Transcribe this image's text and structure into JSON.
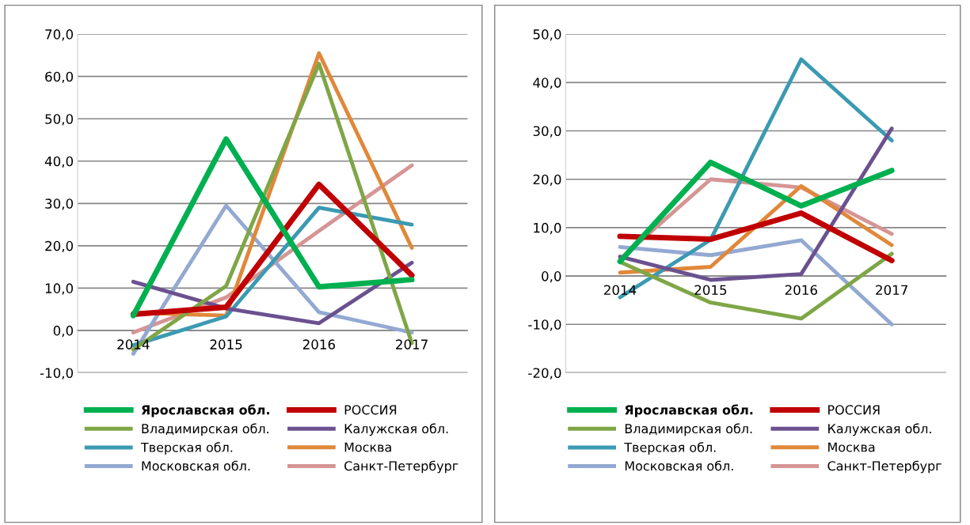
{
  "chart_data": [
    {
      "type": "line",
      "categories": [
        "2014",
        "2015",
        "2016",
        "2017"
      ],
      "ylim": [
        -10,
        70
      ],
      "yticks": [
        {
          "value": -10,
          "label": "-10,0"
        },
        {
          "value": 0,
          "label": "0,0"
        },
        {
          "value": 10,
          "label": "10,0"
        },
        {
          "value": 20,
          "label": "20,0"
        },
        {
          "value": 30,
          "label": "30,0"
        },
        {
          "value": 40,
          "label": "40,0"
        },
        {
          "value": 50,
          "label": "50,0"
        },
        {
          "value": 60,
          "label": "60,0"
        },
        {
          "value": 70,
          "label": "70,0"
        }
      ],
      "grid": "y",
      "legend": "bottom",
      "marker": "none",
      "line_style": "solid",
      "series": [
        {
          "name": "Ярославская обл.",
          "color": "#00b050",
          "values": [
            3.5,
            45.2,
            10.3,
            12.0
          ]
        },
        {
          "name": "РОССИЯ",
          "color": "#c00000",
          "values": [
            3.8,
            5.5,
            34.5,
            13.0
          ]
        },
        {
          "name": "Владимирская обл.",
          "color": "#7fa646",
          "values": [
            -4.5,
            10.5,
            63.0,
            -3.0
          ]
        },
        {
          "name": "Калужская обл.",
          "color": "#6b5190",
          "values": [
            11.5,
            5.2,
            1.7,
            16.0
          ]
        },
        {
          "name": "Тверская обл.",
          "color": "#3b9ab2",
          "values": [
            -3.5,
            3.3,
            29.0,
            25.0
          ]
        },
        {
          "name": "Москва",
          "color": "#e0883a",
          "values": [
            4.2,
            3.5,
            65.5,
            19.5
          ]
        },
        {
          "name": "Московская обл.",
          "color": "#93a9d1",
          "values": [
            -5.5,
            29.5,
            4.3,
            -0.5
          ]
        },
        {
          "name": "Санкт-Петербург",
          "color": "#d69595",
          "values": [
            -0.5,
            7.8,
            23.5,
            39.0
          ]
        }
      ]
    },
    {
      "type": "line",
      "categories": [
        "2014",
        "2015",
        "2016",
        "2017"
      ],
      "ylim": [
        -20,
        50
      ],
      "yticks": [
        {
          "value": -20,
          "label": "-20,0"
        },
        {
          "value": -10,
          "label": "-10,0"
        },
        {
          "value": 0,
          "label": "0,0"
        },
        {
          "value": 10,
          "label": "10,0"
        },
        {
          "value": 20,
          "label": "20,0"
        },
        {
          "value": 30,
          "label": "30,0"
        },
        {
          "value": 40,
          "label": "40,0"
        },
        {
          "value": 50,
          "label": "50,0"
        }
      ],
      "grid": "y",
      "legend": "bottom",
      "marker": "none",
      "line_style": "solid",
      "series": [
        {
          "name": "Ярославская обл.",
          "color": "#00b050",
          "values": [
            3.0,
            23.5,
            14.5,
            21.8
          ]
        },
        {
          "name": "РОССИЯ",
          "color": "#c00000",
          "values": [
            8.2,
            7.6,
            13.0,
            3.2
          ]
        },
        {
          "name": "Владимирская обл.",
          "color": "#7fa646",
          "values": [
            2.9,
            -5.5,
            -8.8,
            4.6
          ]
        },
        {
          "name": "Калужская обл.",
          "color": "#6b5190",
          "values": [
            4.0,
            -0.8,
            0.4,
            30.5
          ]
        },
        {
          "name": "Тверская обл.",
          "color": "#3b9ab2",
          "values": [
            -4.4,
            7.5,
            44.8,
            28.0
          ]
        },
        {
          "name": "Москва",
          "color": "#e0883a",
          "values": [
            0.7,
            1.9,
            18.6,
            6.4
          ]
        },
        {
          "name": "Московская обл.",
          "color": "#93a9d1",
          "values": [
            6.0,
            4.3,
            7.4,
            -10.0
          ]
        },
        {
          "name": "Санкт-Петербург",
          "color": "#d69595",
          "values": [
            3.5,
            20.0,
            18.3,
            8.7
          ]
        }
      ]
    }
  ]
}
